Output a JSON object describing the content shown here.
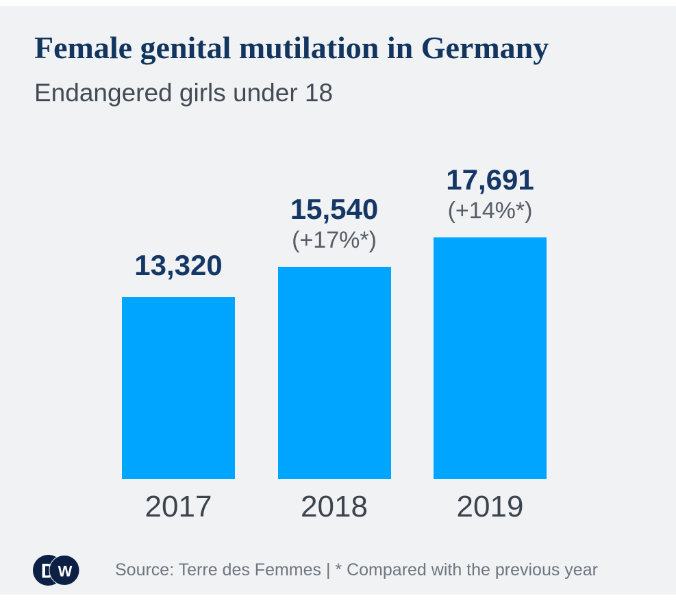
{
  "header": {
    "title": "Female genital mutilation in Germany",
    "subtitle": "Endangered girls under 18"
  },
  "chart_data": {
    "type": "bar",
    "title": "Female genital mutilation in Germany",
    "subtitle": "Endangered girls under 18",
    "categories": [
      "2017",
      "2018",
      "2019"
    ],
    "values": [
      13320,
      15540,
      17691
    ],
    "value_labels": [
      "13,320",
      "15,540",
      "17,691"
    ],
    "change_labels": [
      "",
      "(+17%*)",
      "(+14%*)"
    ],
    "ylim": [
      0,
      17691
    ],
    "grid": false,
    "legend": false,
    "bar_color": "#00a5ff",
    "value_label_color": "#153765",
    "change_label_color": "#565d66"
  },
  "footer": {
    "source_text": "Source: Terre des Femmes | * Compared with the previous year",
    "logo_letters": {
      "d": "D",
      "w": "W"
    }
  },
  "colors": {
    "background": "#f0f2f4",
    "edge_strip": "#ffffff",
    "title_navy": "#12355f",
    "logo_navy": "#0c1f44"
  }
}
